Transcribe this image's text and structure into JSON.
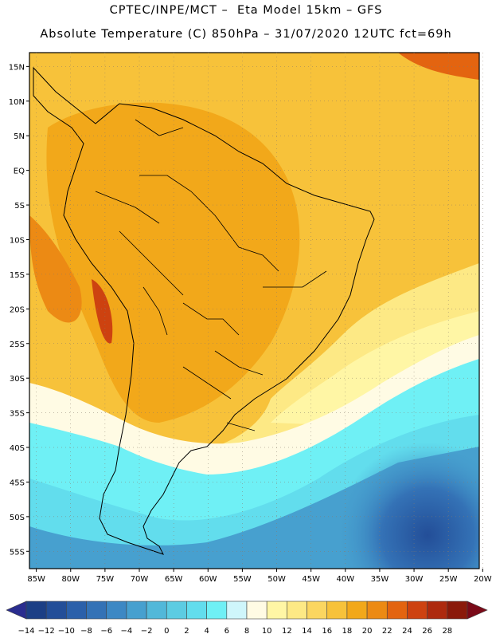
{
  "header": {
    "title_line1": "CPTEC/INPE/MCT –  Eta Model 15km – GFS",
    "title_line2": "Absolute Temperature (C) 850hPa – 31/07/2020 12UTC fct=69h"
  },
  "map": {
    "lat_labels": [
      "15N",
      "10N",
      "5N",
      "EQ",
      "5S",
      "10S",
      "15S",
      "20S",
      "25S",
      "30S",
      "35S",
      "40S",
      "45S",
      "50S",
      "55S"
    ],
    "lon_labels": [
      "85W",
      "80W",
      "75W",
      "70W",
      "65W",
      "60W",
      "55W",
      "50W",
      "45W",
      "40W",
      "35W",
      "30W",
      "25W",
      "20W"
    ],
    "lat_range": [
      17,
      -57.5
    ],
    "lon_range": [
      -86,
      -20.5
    ]
  },
  "colorbar": {
    "labels": [
      "-14",
      "-12",
      "-10",
      "-8",
      "-6",
      "-4",
      "-2",
      "0",
      "2",
      "4",
      "6",
      "8",
      "10",
      "12",
      "14",
      "16",
      "18",
      "20",
      "22",
      "24",
      "26",
      "28"
    ],
    "colors": [
      "#1c3f85",
      "#234e98",
      "#2b60aa",
      "#3472b6",
      "#3d88c4",
      "#47a0cf",
      "#52b8d9",
      "#5ccce2",
      "#62dded",
      "#6ff0f5",
      "#cff6fb",
      "#fffbe4",
      "#fff6a5",
      "#fde985",
      "#fbd660",
      "#f7c23a",
      "#f2a81a",
      "#ec8a14",
      "#e36410",
      "#cd4210",
      "#ad2a0e",
      "#8a1a0a"
    ],
    "min_color": "#2a2d8f",
    "max_color": "#7a0a18"
  }
}
